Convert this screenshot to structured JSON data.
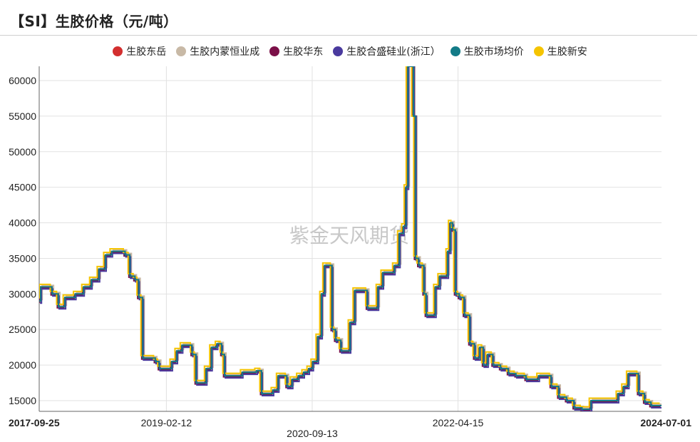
{
  "title": "【SI】生胶价格（元/吨）",
  "watermark": "紫金天风期货",
  "chart_data": {
    "type": "line",
    "title": "【SI】生胶价格（元/吨）",
    "xlabel": "",
    "ylabel": "",
    "ylim": [
      13500,
      62000
    ],
    "yticks": [
      15000,
      20000,
      25000,
      30000,
      35000,
      40000,
      45000,
      50000,
      55000,
      60000
    ],
    "xlim": [
      "2017-09-25",
      "2024-07-01"
    ],
    "xticks": [
      {
        "date": "2017-09-25",
        "label": "2017-09-25",
        "bold": true,
        "row": 0
      },
      {
        "date": "2019-02-12",
        "label": "2019-02-12",
        "bold": false,
        "row": 0
      },
      {
        "date": "2020-09-13",
        "label": "2020-09-13",
        "bold": false,
        "row": 1
      },
      {
        "date": "2022-04-15",
        "label": "2022-04-15",
        "bold": false,
        "row": 0
      },
      {
        "date": "2024-07-01",
        "label": "2024-07-01",
        "bold": true,
        "row": 0
      }
    ],
    "grid": true,
    "legend_position": "top",
    "base_series": [
      [
        "2017-09-25",
        29000
      ],
      [
        "2017-10-01",
        31000
      ],
      [
        "2017-11-01",
        31000
      ],
      [
        "2017-11-15",
        30000
      ],
      [
        "2017-12-10",
        28200
      ],
      [
        "2018-01-05",
        29500
      ],
      [
        "2018-02-15",
        30000
      ],
      [
        "2018-03-20",
        31000
      ],
      [
        "2018-04-20",
        32000
      ],
      [
        "2018-05-20",
        33500
      ],
      [
        "2018-06-15",
        35500
      ],
      [
        "2018-07-10",
        36000
      ],
      [
        "2018-08-15",
        36000
      ],
      [
        "2018-09-01",
        35500
      ],
      [
        "2018-09-20",
        32500
      ],
      [
        "2018-10-10",
        32000
      ],
      [
        "2018-10-25",
        29500
      ],
      [
        "2018-11-10",
        21000
      ],
      [
        "2018-11-30",
        21000
      ],
      [
        "2018-12-30",
        20500
      ],
      [
        "2019-01-15",
        19500
      ],
      [
        "2019-02-12",
        19500
      ],
      [
        "2019-03-05",
        20500
      ],
      [
        "2019-03-25",
        22000
      ],
      [
        "2019-04-15",
        22800
      ],
      [
        "2019-05-10",
        22800
      ],
      [
        "2019-05-25",
        21500
      ],
      [
        "2019-06-10",
        17500
      ],
      [
        "2019-07-01",
        17500
      ],
      [
        "2019-07-20",
        19500
      ],
      [
        "2019-08-10",
        22500
      ],
      [
        "2019-09-01",
        23000
      ],
      [
        "2019-09-20",
        21500
      ],
      [
        "2019-10-01",
        18500
      ],
      [
        "2019-10-20",
        18500
      ],
      [
        "2019-11-20",
        18500
      ],
      [
        "2019-12-10",
        19000
      ],
      [
        "2020-01-10",
        19000
      ],
      [
        "2020-02-05",
        19200
      ],
      [
        "2020-02-25",
        16000
      ],
      [
        "2020-03-25",
        16000
      ],
      [
        "2020-04-10",
        16500
      ],
      [
        "2020-05-01",
        18500
      ],
      [
        "2020-05-20",
        18500
      ],
      [
        "2020-06-05",
        17000
      ],
      [
        "2020-06-25",
        18000
      ],
      [
        "2020-07-20",
        18500
      ],
      [
        "2020-08-10",
        19000
      ],
      [
        "2020-08-30",
        19500
      ],
      [
        "2020-09-15",
        20500
      ],
      [
        "2020-10-05",
        24000
      ],
      [
        "2020-10-20",
        30000
      ],
      [
        "2020-11-01",
        34000
      ],
      [
        "2020-11-20",
        34000
      ],
      [
        "2020-12-01",
        25000
      ],
      [
        "2020-12-15",
        23500
      ],
      [
        "2021-01-05",
        22000
      ],
      [
        "2021-01-25",
        22000
      ],
      [
        "2021-02-10",
        26000
      ],
      [
        "2021-03-01",
        30500
      ],
      [
        "2021-03-30",
        30500
      ],
      [
        "2021-04-20",
        28000
      ],
      [
        "2021-05-10",
        28000
      ],
      [
        "2021-06-01",
        31000
      ],
      [
        "2021-06-20",
        33000
      ],
      [
        "2021-07-15",
        33000
      ],
      [
        "2021-08-05",
        34000
      ],
      [
        "2021-08-25",
        38500
      ],
      [
        "2021-09-10",
        39500
      ],
      [
        "2021-09-20",
        45000
      ],
      [
        "2021-09-28",
        62000
      ],
      [
        "2021-10-12",
        62000
      ],
      [
        "2021-10-20",
        55000
      ],
      [
        "2021-10-28",
        35000
      ],
      [
        "2021-11-10",
        34000
      ],
      [
        "2021-12-01",
        30000
      ],
      [
        "2021-12-10",
        27000
      ],
      [
        "2021-12-31",
        27000
      ],
      [
        "2022-01-15",
        31000
      ],
      [
        "2022-02-01",
        32500
      ],
      [
        "2022-02-20",
        32500
      ],
      [
        "2022-03-05",
        36000
      ],
      [
        "2022-03-15",
        40000
      ],
      [
        "2022-03-25",
        39000
      ],
      [
        "2022-04-05",
        30000
      ],
      [
        "2022-04-20",
        29500
      ],
      [
        "2022-05-10",
        27000
      ],
      [
        "2022-06-01",
        23000
      ],
      [
        "2022-06-20",
        21000
      ],
      [
        "2022-07-10",
        22500
      ],
      [
        "2022-07-25",
        20000
      ],
      [
        "2022-08-10",
        21500
      ],
      [
        "2022-09-01",
        20000
      ],
      [
        "2022-10-01",
        19500
      ],
      [
        "2022-11-01",
        18800
      ],
      [
        "2022-12-01",
        18500
      ],
      [
        "2023-01-10",
        18000
      ],
      [
        "2023-02-10",
        18000
      ],
      [
        "2023-03-01",
        18500
      ],
      [
        "2023-03-25",
        18500
      ],
      [
        "2023-04-20",
        17000
      ],
      [
        "2023-05-20",
        15500
      ],
      [
        "2023-06-20",
        15000
      ],
      [
        "2023-07-20",
        14000
      ],
      [
        "2023-08-20",
        13800
      ],
      [
        "2023-09-10",
        13800
      ],
      [
        "2023-09-25",
        15000
      ],
      [
        "2023-10-20",
        15000
      ],
      [
        "2023-11-20",
        15000
      ],
      [
        "2023-12-20",
        15000
      ],
      [
        "2024-01-10",
        16000
      ],
      [
        "2024-02-01",
        17000
      ],
      [
        "2024-02-20",
        18800
      ],
      [
        "2024-03-10",
        18800
      ],
      [
        "2024-04-01",
        16000
      ],
      [
        "2024-04-25",
        14800
      ],
      [
        "2024-05-20",
        14300
      ],
      [
        "2024-07-01",
        14300
      ]
    ],
    "series": [
      {
        "name": "生胶东岳",
        "color": "#d32f2f",
        "offset": 0,
        "shift_days": 0
      },
      {
        "name": "生胶内蒙恒业成",
        "color": "#c8b9a6",
        "offset": 200,
        "shift_days": 6
      },
      {
        "name": "生胶华东",
        "color": "#7b1048",
        "offset": -150,
        "shift_days": -4
      },
      {
        "name": "生胶合盛硅业(浙江）",
        "color": "#4a3a9e",
        "offset": -300,
        "shift_days": 3
      },
      {
        "name": "生胶市场均价",
        "color": "#137b87",
        "offset": 0,
        "shift_days": 0
      },
      {
        "name": "生胶新安",
        "color": "#f5c400",
        "offset": 350,
        "shift_days": -7
      }
    ]
  }
}
